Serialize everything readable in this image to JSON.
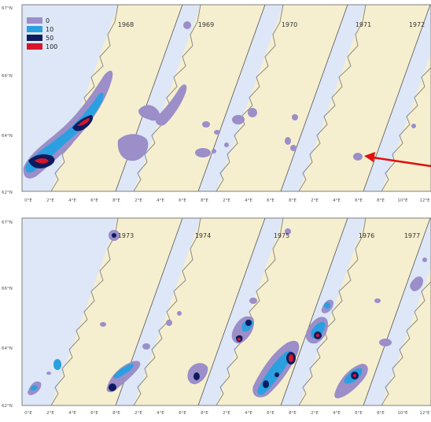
{
  "figure": {
    "panels": [
      {
        "id": "top",
        "years": [
          "1968",
          "1969",
          "1970",
          "1971",
          "1972"
        ],
        "lat_labels": [
          "67°N",
          "66°N",
          "64°N",
          "62°N"
        ],
        "lon_labels": [
          "0°E",
          "2°E",
          "4°E",
          "6°E",
          "8°E",
          "2°E",
          "4°E",
          "6°E",
          "8°E",
          "2°E",
          "4°E",
          "6°E",
          "8°E",
          "2°E",
          "4°E",
          "6°E",
          "8°E",
          "10°E",
          "12°E"
        ]
      },
      {
        "id": "bottom",
        "years": [
          "1973",
          "1974",
          "1975",
          "1976",
          "1977"
        ],
        "lat_labels": [
          "67°N",
          "66°N",
          "64°N",
          "62°N"
        ],
        "lon_labels": [
          "0°E",
          "2°E",
          "4°E",
          "6°E",
          "8°E",
          "2°E",
          "4°E",
          "6°E",
          "8°E",
          "2°E",
          "4°E",
          "6°E",
          "8°E",
          "2°E",
          "4°E",
          "6°E",
          "8°E",
          "10°E",
          "12°E"
        ]
      }
    ],
    "legend": [
      {
        "label": "0",
        "color": "#9b8ec9"
      },
      {
        "label": "10",
        "color": "#2aa0e0"
      },
      {
        "label": "50",
        "color": "#0d1b5e"
      },
      {
        "label": "100",
        "color": "#d6162b"
      }
    ],
    "colors": {
      "sea": "#dde7f7",
      "land": "#f6efcf",
      "coast": "#8a8a8a",
      "arrow": "#e01010"
    }
  }
}
